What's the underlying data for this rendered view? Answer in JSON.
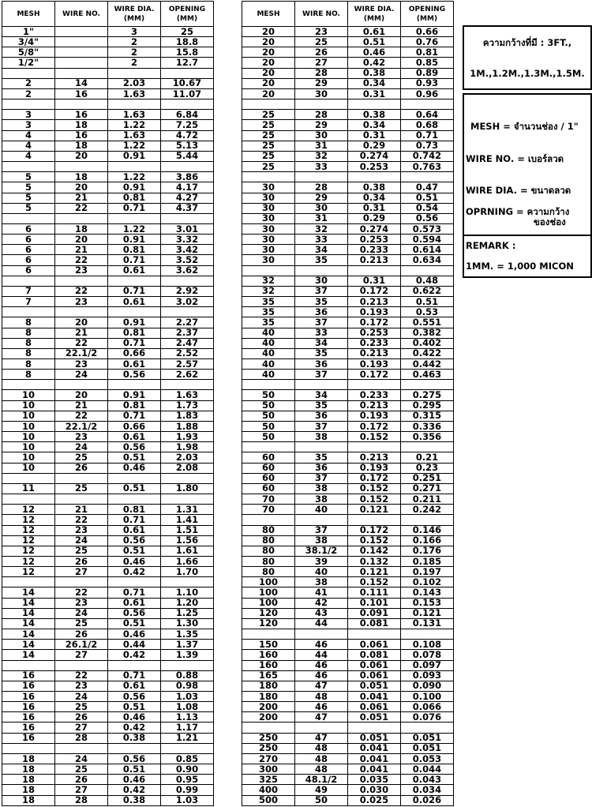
{
  "tables": [
    {
      "headers": [
        "MESH",
        "WIRE NO.",
        [
          "WIRE DIA.",
          "(MM)"
        ],
        [
          "OPENING",
          "(MM)"
        ]
      ],
      "rows": [
        [
          "1\"",
          null,
          "3",
          "25"
        ],
        [
          "3/4\"",
          null,
          "2",
          "18.8"
        ],
        [
          "5/8\"",
          null,
          "2",
          "15.8"
        ],
        [
          "1/2\"",
          null,
          "2",
          "12.7"
        ],
        null,
        [
          "2",
          "14",
          "2.03",
          "10.67"
        ],
        [
          "2",
          "16",
          "1.63",
          "11.07"
        ],
        null,
        [
          "3",
          "16",
          "1.63",
          "6.84"
        ],
        [
          "3",
          "18",
          "1.22",
          "7.25"
        ],
        [
          "4",
          "16",
          "1.63",
          "4.72"
        ],
        [
          "4",
          "18",
          "1.22",
          "5.13"
        ],
        [
          "4",
          "20",
          "0.91",
          "5.44"
        ],
        null,
        [
          "5",
          "18",
          "1.22",
          "3.86"
        ],
        [
          "5",
          "20",
          "0.91",
          "4.17"
        ],
        [
          "5",
          "21",
          "0.81",
          "4.27"
        ],
        [
          "5",
          "22",
          "0.71",
          "4.37"
        ],
        null,
        [
          "6",
          "18",
          "1.22",
          "3.01"
        ],
        [
          "6",
          "20",
          "0.91",
          "3.32"
        ],
        [
          "6",
          "21",
          "0.81",
          "3.42"
        ],
        [
          "6",
          "22",
          "0.71",
          "3.52"
        ],
        [
          "6",
          "23",
          "0.61",
          "3.62"
        ],
        null,
        [
          "7",
          "22",
          "0.71",
          "2.92"
        ],
        [
          "7",
          "23",
          "0.61",
          "3.02"
        ],
        null,
        [
          "8",
          "20",
          "0.91",
          "2.27"
        ],
        [
          "8",
          "21",
          "0.81",
          "2.37"
        ],
        [
          "8",
          "22",
          "0.71",
          "2.47"
        ],
        [
          "8",
          "22.1/2",
          "0.66",
          "2.52"
        ],
        [
          "8",
          "23",
          "0.61",
          "2.57"
        ],
        [
          "8",
          "24",
          "0.56",
          "2.62"
        ],
        null,
        [
          "10",
          "20",
          "0.91",
          "1.63"
        ],
        [
          "10",
          "21",
          "0.81",
          "1.73"
        ],
        [
          "10",
          "22",
          "0.71",
          "1.83"
        ],
        [
          "10",
          "22.1/2",
          "0.66",
          "1.88"
        ],
        [
          "10",
          "23",
          "0.61",
          "1.93"
        ],
        [
          "10",
          "24",
          "0.56",
          "1.98"
        ],
        [
          "10",
          "25",
          "0.51",
          "2.03"
        ],
        [
          "10",
          "26",
          "0.46",
          "2.08"
        ],
        null,
        [
          "11",
          "25",
          "0.51",
          "1.80"
        ],
        null,
        [
          "12",
          "21",
          "0.81",
          "1.31"
        ],
        [
          "12",
          "22",
          "0.71",
          "1.41"
        ],
        [
          "12",
          "23",
          "0.61",
          "1.51"
        ],
        [
          "12",
          "24",
          "0.56",
          "1.56"
        ],
        [
          "12",
          "25",
          "0.51",
          "1.61"
        ],
        [
          "12",
          "26",
          "0.46",
          "1.66"
        ],
        [
          "12",
          "27",
          "0.42",
          "1.70"
        ],
        null,
        [
          "14",
          "22",
          "0.71",
          "1.10"
        ],
        [
          "14",
          "23",
          "0.61",
          "1.20"
        ],
        [
          "14",
          "24",
          "0.56",
          "1.25"
        ],
        [
          "14",
          "25",
          "0.51",
          "1.30"
        ],
        [
          "14",
          "26",
          "0.46",
          "1.35"
        ],
        [
          "14",
          "26.1/2",
          "0.44",
          "1.37"
        ],
        [
          "14",
          "27",
          "0.42",
          "1.39"
        ],
        null,
        [
          "16",
          "22",
          "0.71",
          "0.88"
        ],
        [
          "16",
          "23",
          "0.61",
          "0.98"
        ],
        [
          "16",
          "24",
          "0.56",
          "1.03"
        ],
        [
          "16",
          "25",
          "0.51",
          "1.08"
        ],
        [
          "16",
          "26",
          "0.46",
          "1.13"
        ],
        [
          "16",
          "27",
          "0.42",
          "1.17"
        ],
        [
          "16",
          "28",
          "0.38",
          "1.21"
        ],
        null,
        [
          "18",
          "24",
          "0.56",
          "0.85"
        ],
        [
          "18",
          "25",
          "0.51",
          "0.90"
        ],
        [
          "18",
          "26",
          "0.46",
          "0.95"
        ],
        [
          "18",
          "27",
          "0.42",
          "0.99"
        ],
        [
          "18",
          "28",
          "0.38",
          "1.03"
        ]
      ]
    },
    {
      "headers": [
        "MESH",
        "WIRE NO.",
        [
          "WIRE DIA.",
          "(MM)"
        ],
        [
          "OPENING",
          "(MM)"
        ]
      ],
      "rows": [
        [
          "20",
          "23",
          "0.61",
          "0.66"
        ],
        [
          "20",
          "25",
          "0.51",
          "0.76"
        ],
        [
          "20",
          "26",
          "0.46",
          "0.81"
        ],
        [
          "20",
          "27",
          "0.42",
          "0.85"
        ],
        [
          "20",
          "28",
          "0.38",
          "0.89"
        ],
        [
          "20",
          "29",
          "0.34",
          "0.93"
        ],
        [
          "20",
          "30",
          "0.31",
          "0.96"
        ],
        null,
        [
          "25",
          "28",
          "0.38",
          "0.64"
        ],
        [
          "25",
          "29",
          "0.34",
          "0.68"
        ],
        [
          "25",
          "30",
          "0.31",
          "0.71"
        ],
        [
          "25",
          "31",
          "0.29",
          "0.73"
        ],
        [
          "25",
          "32",
          "0.274",
          "0.742"
        ],
        [
          "25",
          "33",
          "0.253",
          "0.763"
        ],
        null,
        [
          "30",
          "28",
          "0.38",
          "0.47"
        ],
        [
          "30",
          "29",
          "0.34",
          "0.51"
        ],
        [
          "30",
          "30",
          "0.31",
          "0.54"
        ],
        [
          "30",
          "31",
          "0.29",
          "0.56"
        ],
        [
          "30",
          "32",
          "0.274",
          "0.573"
        ],
        [
          "30",
          "33",
          "0.253",
          "0.594"
        ],
        [
          "30",
          "34",
          "0.233",
          "0.614"
        ],
        [
          "30",
          "35",
          "0.213",
          "0.634"
        ],
        null,
        [
          "32",
          "30",
          "0.31",
          "0.48"
        ],
        [
          "32",
          "37",
          "0.172",
          "0.622"
        ],
        [
          "35",
          "35",
          "0.213",
          "0.51"
        ],
        [
          "35",
          "36",
          "0.193",
          "0.53"
        ],
        [
          "35",
          "37",
          "0.172",
          "0.551"
        ],
        [
          "40",
          "33",
          "0.253",
          "0.382"
        ],
        [
          "40",
          "34",
          "0.233",
          "0.402"
        ],
        [
          "40",
          "35",
          "0.213",
          "0.422"
        ],
        [
          "40",
          "36",
          "0.193",
          "0.442"
        ],
        [
          "40",
          "37",
          "0.172",
          "0.463"
        ],
        null,
        [
          "50",
          "34",
          "0.233",
          "0.275"
        ],
        [
          "50",
          "35",
          "0.213",
          "0.295"
        ],
        [
          "50",
          "36",
          "0.193",
          "0.315"
        ],
        [
          "50",
          "37",
          "0.172",
          "0.336"
        ],
        [
          "50",
          "38",
          "0.152",
          "0.356"
        ],
        null,
        [
          "60",
          "35",
          "0.213",
          "0.21"
        ],
        [
          "60",
          "36",
          "0.193",
          "0.23"
        ],
        [
          "60",
          "37",
          "0.172",
          "0.251"
        ],
        [
          "60",
          "38",
          "0.152",
          "0.271"
        ],
        [
          "70",
          "38",
          "0.152",
          "0.211"
        ],
        [
          "70",
          "40",
          "0.121",
          "0.242"
        ],
        null,
        [
          "80",
          "37",
          "0.172",
          "0.146"
        ],
        [
          "80",
          "38",
          "0.152",
          "0.166"
        ],
        [
          "80",
          "38.1/2",
          "0.142",
          "0.176"
        ],
        [
          "80",
          "39",
          "0.132",
          "0.185"
        ],
        [
          "80",
          "40",
          "0.121",
          "0.197"
        ],
        [
          "100",
          "38",
          "0.152",
          "0.102"
        ],
        [
          "100",
          "41",
          "0.111",
          "0.143"
        ],
        [
          "100",
          "42",
          "0.101",
          "0.153"
        ],
        [
          "120",
          "43",
          "0.091",
          "0.121"
        ],
        [
          "120",
          "44",
          "0.081",
          "0.131"
        ],
        null,
        [
          "150",
          "46",
          "0.061",
          "0.108"
        ],
        [
          "160",
          "44",
          "0.081",
          "0.078"
        ],
        [
          "160",
          "46",
          "0.061",
          "0.097"
        ],
        [
          "165",
          "46",
          "0.061",
          "0.093"
        ],
        [
          "180",
          "47",
          "0.051",
          "0.090"
        ],
        [
          "180",
          "48",
          "0.041",
          "0.100"
        ],
        [
          "200",
          "46",
          "0.061",
          "0.066"
        ],
        [
          "200",
          "47",
          "0.051",
          "0.076"
        ],
        null,
        [
          "250",
          "47",
          "0.051",
          "0.051"
        ],
        [
          "250",
          "48",
          "0.041",
          "0.051"
        ],
        [
          "270",
          "48",
          "0.041",
          "0.053"
        ],
        [
          "300",
          "48",
          "0.041",
          "0.044"
        ],
        [
          "325",
          "48.1/2",
          "0.035",
          "0.043"
        ],
        [
          "400",
          "49",
          "0.030",
          "0.034"
        ],
        [
          "500",
          "50",
          "0.025",
          "0.026"
        ]
      ]
    }
  ],
  "width_box": {
    "line1": "ความกว้างที่มี : 3FT.,",
    "line2": "1M.,1.2M.,1.3M.,1.5M."
  },
  "legend_box": {
    "mesh": "MESH = จำนวนช่อง / 1\"",
    "wire_no": "WIRE NO. = เบอร์ลวด",
    "wire_dia": "WIRE DIA. = ขนาดลวด",
    "opening": [
      "OPRNING = ความกว้าง",
      "ของช่อง"
    ],
    "remark_title": "REMARK :",
    "remark": "1MM. = 1,000 MICON"
  }
}
